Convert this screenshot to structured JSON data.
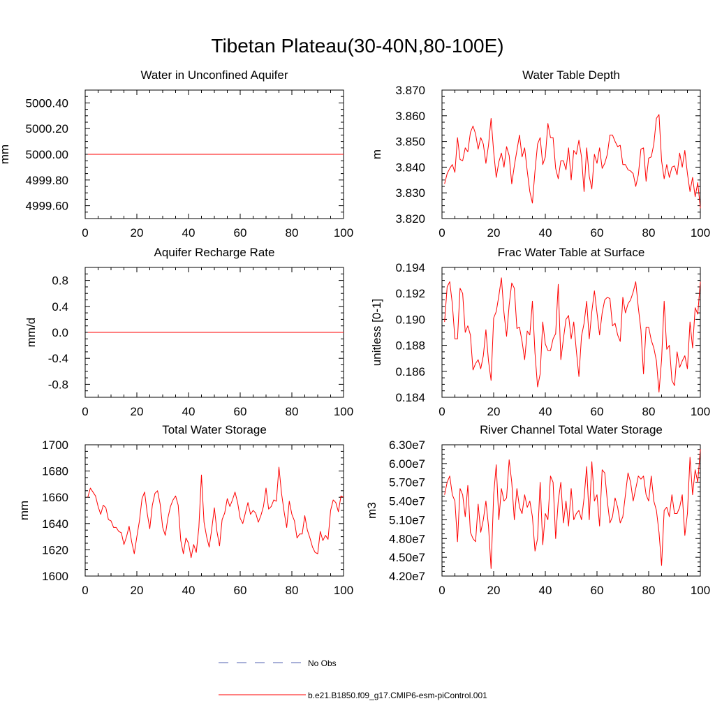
{
  "figure": {
    "title": "Tibetan Plateau(30-40N,80-100E)",
    "legend": [
      {
        "label": "No Obs",
        "style": "dashed",
        "color": "#5060b0"
      },
      {
        "label": "b.e21.B1850.f09_g17.CMIP6-esm-piControl.001",
        "style": "solid",
        "color": "#ff0000"
      }
    ]
  },
  "chart_data": [
    {
      "type": "line",
      "title": "Water in Unconfined Aquifer",
      "xlabel": "",
      "ylabel": "mm",
      "xlim": [
        0,
        100
      ],
      "ylim": [
        4999.5,
        5000.5
      ],
      "xticks": [
        0,
        20,
        40,
        60,
        80,
        100
      ],
      "yticks": [
        4999.6,
        4999.8,
        5000.0,
        5000.2,
        5000.4
      ],
      "yticklabels": [
        "4999.60",
        "4999.80",
        "5000.00",
        "5000.20",
        "5000.40"
      ],
      "series": [
        {
          "name": "b.e21.B1850.f09_g17.CMIP6-esm-piControl.001",
          "x_start": 1,
          "x_step": 1,
          "constant": 5000.0,
          "n": 100
        }
      ]
    },
    {
      "type": "line",
      "title": "Water Table Depth",
      "xlabel": "",
      "ylabel": "m",
      "xlim": [
        0,
        100
      ],
      "ylim": [
        3.82,
        3.87
      ],
      "xticks": [
        0,
        20,
        40,
        60,
        80,
        100
      ],
      "yticks": [
        3.82,
        3.83,
        3.84,
        3.85,
        3.86,
        3.87
      ],
      "yticklabels": [
        "3.820",
        "3.830",
        "3.840",
        "3.850",
        "3.860",
        "3.870"
      ],
      "series": [
        {
          "name": "b.e21.B1850.f09_g17.CMIP6-esm-piControl.001",
          "x_start": 1,
          "x_step": 1,
          "values": [
            3.8335,
            3.8375,
            3.8395,
            3.841,
            3.838,
            3.8515,
            3.843,
            3.8425,
            3.8475,
            3.846,
            3.8535,
            3.856,
            3.853,
            3.847,
            3.8515,
            3.849,
            3.8415,
            3.8485,
            3.859,
            3.846,
            3.836,
            3.842,
            3.8455,
            3.84,
            3.848,
            3.8445,
            3.8335,
            3.8405,
            3.8465,
            3.8525,
            3.844,
            3.8475,
            3.8385,
            3.8305,
            3.826,
            3.8385,
            3.849,
            3.8515,
            3.841,
            3.844,
            3.857,
            3.8515,
            3.8515,
            3.8395,
            3.8355,
            3.8425,
            3.8425,
            3.839,
            3.8475,
            3.835,
            3.8465,
            3.845,
            3.8505,
            3.844,
            3.8305,
            3.8475,
            3.8365,
            3.8315,
            3.845,
            3.8415,
            3.8475,
            3.8395,
            3.8415,
            3.845,
            3.8525,
            3.8525,
            3.85,
            3.848,
            3.8485,
            3.841,
            3.841,
            3.839,
            3.8385,
            3.8375,
            3.8325,
            3.837,
            3.847,
            3.8475,
            3.8345,
            3.8435,
            3.844,
            3.849,
            3.859,
            3.8605,
            3.8425,
            3.8355,
            3.841,
            3.836,
            3.84,
            3.8405,
            3.837,
            3.8455,
            3.84,
            3.8465,
            3.8375,
            3.8305,
            3.836,
            3.8285,
            3.834,
            3.824
          ]
        }
      ]
    },
    {
      "type": "line",
      "title": "Aquifer Recharge Rate",
      "xlabel": "",
      "ylabel": "mm/d",
      "xlim": [
        0,
        100
      ],
      "ylim": [
        -1.0,
        1.0
      ],
      "xticks": [
        0,
        20,
        40,
        60,
        80,
        100
      ],
      "yticks": [
        -0.8,
        -0.4,
        0.0,
        0.4,
        0.8
      ],
      "yticklabels": [
        "-0.8",
        "-0.4",
        "0.0",
        "0.4",
        "0.8"
      ],
      "series": [
        {
          "name": "b.e21.B1850.f09_g17.CMIP6-esm-piControl.001",
          "x_start": 1,
          "x_step": 1,
          "constant": 0.0,
          "n": 100
        }
      ]
    },
    {
      "type": "line",
      "title": "Frac Water Table at Surface",
      "xlabel": "",
      "ylabel": "unitless [0-1]",
      "xlim": [
        0,
        100
      ],
      "ylim": [
        0.184,
        0.194
      ],
      "xticks": [
        0,
        20,
        40,
        60,
        80,
        100
      ],
      "yticks": [
        0.184,
        0.186,
        0.188,
        0.19,
        0.192,
        0.194
      ],
      "yticklabels": [
        "0.184",
        "0.186",
        "0.188",
        "0.190",
        "0.192",
        "0.194"
      ],
      "series": [
        {
          "name": "b.e21.B1850.f09_g17.CMIP6-esm-piControl.001",
          "x_start": 1,
          "x_step": 1,
          "values": [
            0.1898,
            0.1925,
            0.1929,
            0.1912,
            0.1885,
            0.1885,
            0.1924,
            0.192,
            0.189,
            0.1895,
            0.1888,
            0.1861,
            0.1866,
            0.1869,
            0.1862,
            0.1872,
            0.1892,
            0.1868,
            0.1853,
            0.1901,
            0.1906,
            0.1918,
            0.1932,
            0.1905,
            0.1887,
            0.1911,
            0.1928,
            0.1924,
            0.1893,
            0.1894,
            0.1883,
            0.1869,
            0.1891,
            0.1888,
            0.1914,
            0.1874,
            0.1848,
            0.1858,
            0.1898,
            0.1881,
            0.1876,
            0.1876,
            0.1885,
            0.1889,
            0.1927,
            0.1869,
            0.1885,
            0.19,
            0.1903,
            0.1885,
            0.1898,
            0.1876,
            0.1856,
            0.1887,
            0.1897,
            0.1914,
            0.1885,
            0.1906,
            0.1922,
            0.1905,
            0.1888,
            0.1905,
            0.1915,
            0.1917,
            0.1916,
            0.1895,
            0.1897,
            0.1888,
            0.1883,
            0.1917,
            0.1905,
            0.1912,
            0.1915,
            0.1921,
            0.1929,
            0.1909,
            0.1892,
            0.1858,
            0.1894,
            0.1894,
            0.1884,
            0.1878,
            0.1868,
            0.1844,
            0.1869,
            0.1914,
            0.1877,
            0.188,
            0.1853,
            0.1849,
            0.1875,
            0.1863,
            0.1868,
            0.1872,
            0.1862,
            0.1898,
            0.1878,
            0.1909,
            0.1904,
            0.1929
          ]
        }
      ]
    },
    {
      "type": "line",
      "title": "Total Water Storage",
      "xlabel": "",
      "ylabel": "mm",
      "xlim": [
        0,
        100
      ],
      "ylim": [
        1600,
        1700
      ],
      "xticks": [
        0,
        20,
        40,
        60,
        80,
        100
      ],
      "yticks": [
        1600,
        1620,
        1640,
        1660,
        1680,
        1700
      ],
      "yticklabels": [
        "1600",
        "1620",
        "1640",
        "1660",
        "1680",
        "1700"
      ],
      "series": [
        {
          "name": "b.e21.B1850.f09_g17.CMIP6-esm-piControl.001",
          "x_start": 1,
          "x_step": 1,
          "values": [
            1660,
            1667,
            1664,
            1661,
            1653,
            1647,
            1654,
            1652,
            1643,
            1642,
            1637,
            1637,
            1634,
            1633,
            1624,
            1630,
            1638,
            1626,
            1617,
            1630,
            1642,
            1659,
            1664,
            1648,
            1636,
            1654,
            1663,
            1665,
            1655,
            1637,
            1631,
            1644,
            1653,
            1658,
            1661,
            1654,
            1627,
            1617,
            1629,
            1625,
            1614,
            1624,
            1618,
            1637,
            1677,
            1641,
            1630,
            1622,
            1636,
            1652,
            1634,
            1623,
            1643,
            1648,
            1659,
            1653,
            1658,
            1664,
            1656,
            1644,
            1640,
            1648,
            1656,
            1647,
            1650,
            1648,
            1641,
            1646,
            1653,
            1667,
            1651,
            1653,
            1658,
            1657,
            1683,
            1663,
            1649,
            1637,
            1657,
            1647,
            1642,
            1629,
            1632,
            1632,
            1646,
            1635,
            1629,
            1622,
            1618,
            1617,
            1634,
            1627,
            1631,
            1628,
            1650,
            1658,
            1656,
            1649,
            1661,
            1660
          ]
        }
      ]
    },
    {
      "type": "line",
      "title": "River Channel Total Water Storage",
      "xlabel": "",
      "ylabel": "m3",
      "xlim": [
        0,
        100
      ],
      "ylim": [
        42000000,
        63000000
      ],
      "xticks": [
        0,
        20,
        40,
        60,
        80,
        100
      ],
      "yticks": [
        42000000,
        45000000,
        48000000,
        51000000,
        54000000,
        57000000,
        60000000,
        63000000
      ],
      "yticklabels": [
        "4.20e7",
        "4.50e7",
        "4.80e7",
        "5.10e7",
        "5.40e7",
        "5.70e7",
        "6.00e7",
        "6.30e7"
      ],
      "series": [
        {
          "name": "b.e21.B1850.f09_g17.CMIP6-esm-piControl.001",
          "x_start": 1,
          "x_step": 1,
          "values": [
            55000000,
            57000000,
            58000000,
            55000000,
            54000000,
            47500000,
            56000000,
            55000000,
            51500000,
            56500000,
            49000000,
            48000000,
            47500000,
            53500000,
            49000000,
            51000000,
            54000000,
            50000000,
            43200000,
            55000000,
            59800000,
            51000000,
            56000000,
            54000000,
            54500000,
            60600000,
            57000000,
            51000000,
            56000000,
            53000000,
            52000000,
            55000000,
            53000000,
            54000000,
            51500000,
            46000000,
            48000000,
            57000000,
            47000000,
            52000000,
            51000000,
            58000000,
            57000000,
            48000000,
            54000000,
            57000000,
            50500000,
            54000000,
            50000000,
            56000000,
            51000000,
            52000000,
            52500000,
            51000000,
            54500000,
            59500000,
            51000000,
            60300000,
            54000000,
            55000000,
            50000000,
            59000000,
            58500000,
            54000000,
            50500000,
            51500000,
            54500000,
            53000000,
            50500000,
            51500000,
            55000000,
            58500000,
            57000000,
            54000000,
            56000000,
            58000000,
            57500000,
            58000000,
            55000000,
            54000000,
            58000000,
            54000000,
            52500000,
            49000000,
            43700000,
            52500000,
            53000000,
            51500000,
            55000000,
            52000000,
            52000000,
            53000000,
            55000000,
            48500000,
            52000000,
            61000000,
            55000000,
            59000000,
            57000000,
            62300000
          ]
        }
      ]
    }
  ]
}
